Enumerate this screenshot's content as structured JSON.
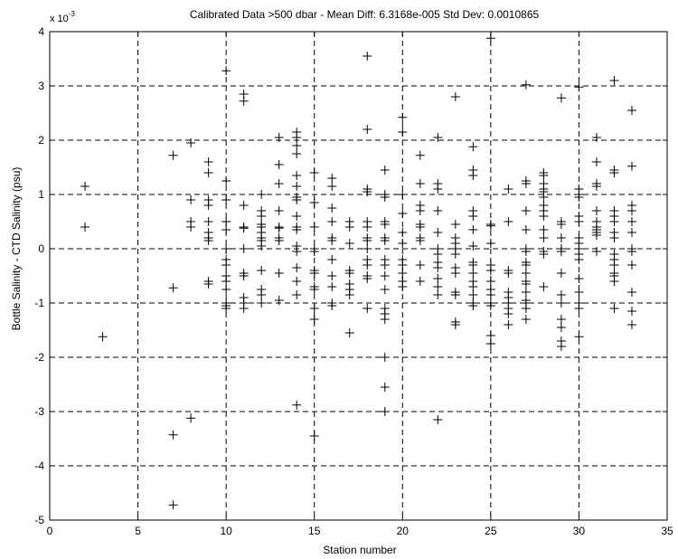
{
  "chart_data": {
    "type": "scatter",
    "title": "Calibrated Data >500 dbar - Mean Diff: 6.3168e-005 Std Dev: 0.0010865",
    "xlabel": "Station number",
    "ylabel": "Bottle Salinity - CTD Salinity (psu)",
    "y_multiplier": {
      "base": "x 10",
      "exponent": "-3"
    },
    "xlim": [
      0,
      35
    ],
    "ylim": [
      -5,
      4
    ],
    "x_ticks": [
      "0",
      "5",
      "10",
      "15",
      "20",
      "25",
      "30",
      "35"
    ],
    "y_ticks": [
      "-5",
      "-4",
      "-3",
      "-2",
      "-1",
      "0",
      "1",
      "2",
      "3",
      "4"
    ],
    "grid": true,
    "marker": "+",
    "series": [
      {
        "points": [
          [
            2,
            1.15
          ],
          [
            2,
            0.4
          ],
          [
            3,
            -1.62
          ],
          [
            7,
            1.72
          ],
          [
            7,
            -0.72
          ],
          [
            7,
            -3.43
          ],
          [
            7,
            -4.72
          ],
          [
            8,
            1.95
          ],
          [
            8,
            0.9
          ],
          [
            8,
            0.5
          ],
          [
            8,
            0.4
          ],
          [
            8,
            -3.12
          ],
          [
            9,
            1.6
          ],
          [
            9,
            1.4
          ],
          [
            9,
            0.9
          ],
          [
            9,
            0.8
          ],
          [
            9,
            0.5
          ],
          [
            9,
            0.3
          ],
          [
            9,
            0.2
          ],
          [
            9,
            0.15
          ],
          [
            9,
            -0.6
          ],
          [
            9,
            -0.65
          ],
          [
            10,
            3.28
          ],
          [
            10,
            1.25
          ],
          [
            10,
            0.9
          ],
          [
            10,
            0.5
          ],
          [
            10,
            0.35
          ],
          [
            10,
            0.0
          ],
          [
            10,
            -0.2
          ],
          [
            10,
            -0.3
          ],
          [
            10,
            -0.5
          ],
          [
            10,
            -0.6
          ],
          [
            10,
            -0.75
          ],
          [
            10,
            -1.0
          ],
          [
            10,
            -1.05
          ],
          [
            10,
            -1.1
          ],
          [
            11,
            2.85
          ],
          [
            11,
            2.72
          ],
          [
            11,
            0.8
          ],
          [
            11,
            0.4
          ],
          [
            11,
            0.38
          ],
          [
            11,
            0.0
          ],
          [
            11,
            -0.45
          ],
          [
            11,
            -0.5
          ],
          [
            11,
            -0.9
          ],
          [
            11,
            -1.0
          ],
          [
            11,
            -1.1
          ],
          [
            12,
            1.0
          ],
          [
            12,
            0.7
          ],
          [
            12,
            0.6
          ],
          [
            12,
            0.45
          ],
          [
            12,
            0.4
          ],
          [
            12,
            0.3
          ],
          [
            12,
            0.2
          ],
          [
            12,
            0.15
          ],
          [
            12,
            0.05
          ],
          [
            12,
            -0.4
          ],
          [
            12,
            -0.75
          ],
          [
            12,
            -0.85
          ],
          [
            12,
            -1.0
          ],
          [
            13,
            2.05
          ],
          [
            13,
            1.55
          ],
          [
            13,
            1.2
          ],
          [
            13,
            0.7
          ],
          [
            13,
            0.4
          ],
          [
            13,
            0.38
          ],
          [
            13,
            0.2
          ],
          [
            13,
            0.15
          ],
          [
            13,
            -0.45
          ],
          [
            13,
            -0.95
          ],
          [
            14,
            2.15
          ],
          [
            14,
            2.05
          ],
          [
            14,
            1.9
          ],
          [
            14,
            1.75
          ],
          [
            14,
            1.35
          ],
          [
            14,
            1.15
          ],
          [
            14,
            0.95
          ],
          [
            14,
            0.9
          ],
          [
            14,
            0.6
          ],
          [
            14,
            0.4
          ],
          [
            14,
            0.35
          ],
          [
            14,
            0.05
          ],
          [
            14,
            -0.05
          ],
          [
            14,
            -0.35
          ],
          [
            14,
            -0.6
          ],
          [
            14,
            -0.85
          ],
          [
            14,
            -2.88
          ],
          [
            15,
            1.4
          ],
          [
            15,
            0.85
          ],
          [
            15,
            0.4
          ],
          [
            15,
            0.0
          ],
          [
            15,
            -0.05
          ],
          [
            15,
            -0.4
          ],
          [
            15,
            -0.45
          ],
          [
            15,
            -0.7
          ],
          [
            15,
            -0.75
          ],
          [
            15,
            -1.1
          ],
          [
            15,
            -1.3
          ],
          [
            15,
            -3.45
          ],
          [
            16,
            1.3
          ],
          [
            16,
            1.15
          ],
          [
            16,
            0.75
          ],
          [
            16,
            0.5
          ],
          [
            16,
            0.2
          ],
          [
            16,
            0.15
          ],
          [
            16,
            -0.2
          ],
          [
            16,
            -0.5
          ],
          [
            16,
            -0.7
          ],
          [
            16,
            -1.0
          ],
          [
            16,
            -1.05
          ],
          [
            17,
            0.5
          ],
          [
            17,
            0.4
          ],
          [
            17,
            0.1
          ],
          [
            17,
            -0.4
          ],
          [
            17,
            -0.45
          ],
          [
            17,
            -0.65
          ],
          [
            17,
            -0.75
          ],
          [
            17,
            -0.85
          ],
          [
            17,
            -1.55
          ],
          [
            18,
            3.55
          ],
          [
            18,
            2.2
          ],
          [
            18,
            1.1
          ],
          [
            18,
            1.05
          ],
          [
            18,
            0.5
          ],
          [
            18,
            0.4
          ],
          [
            18,
            0.2
          ],
          [
            18,
            0.15
          ],
          [
            18,
            0.0
          ],
          [
            18,
            -0.2
          ],
          [
            18,
            -0.3
          ],
          [
            18,
            -0.5
          ],
          [
            18,
            -0.55
          ],
          [
            18,
            -1.1
          ],
          [
            19,
            1.45
          ],
          [
            19,
            1.0
          ],
          [
            19,
            0.95
          ],
          [
            19,
            0.5
          ],
          [
            19,
            0.45
          ],
          [
            19,
            0.2
          ],
          [
            19,
            0.15
          ],
          [
            19,
            -0.2
          ],
          [
            19,
            -0.3
          ],
          [
            19,
            -0.5
          ],
          [
            19,
            -0.75
          ],
          [
            19,
            -1.1
          ],
          [
            19,
            -1.2
          ],
          [
            19,
            -1.3
          ],
          [
            19,
            -2.0
          ],
          [
            19,
            -2.55
          ],
          [
            19,
            -3.0
          ],
          [
            20,
            2.42
          ],
          [
            20,
            2.15
          ],
          [
            20,
            1.0
          ],
          [
            20,
            0.65
          ],
          [
            20,
            0.3
          ],
          [
            20,
            0.1
          ],
          [
            20,
            -0.2
          ],
          [
            20,
            -0.3
          ],
          [
            20,
            -0.45
          ],
          [
            20,
            -0.6
          ],
          [
            20,
            -0.7
          ],
          [
            21,
            1.72
          ],
          [
            21,
            1.2
          ],
          [
            21,
            0.8
          ],
          [
            21,
            0.7
          ],
          [
            21,
            0.45
          ],
          [
            21,
            0.4
          ],
          [
            21,
            0.2
          ],
          [
            21,
            0.15
          ],
          [
            21,
            -0.3
          ],
          [
            21,
            -0.6
          ],
          [
            22,
            2.05
          ],
          [
            22,
            1.2
          ],
          [
            22,
            1.1
          ],
          [
            22,
            0.7
          ],
          [
            22,
            0.3
          ],
          [
            22,
            0.0
          ],
          [
            22,
            -0.1
          ],
          [
            22,
            -0.25
          ],
          [
            22,
            -0.35
          ],
          [
            22,
            -0.55
          ],
          [
            22,
            -0.7
          ],
          [
            22,
            -0.85
          ],
          [
            22,
            -3.15
          ],
          [
            23,
            2.8
          ],
          [
            23,
            0.45
          ],
          [
            23,
            0.2
          ],
          [
            23,
            0.1
          ],
          [
            23,
            0.0
          ],
          [
            23,
            -0.1
          ],
          [
            23,
            -0.35
          ],
          [
            23,
            -0.45
          ],
          [
            23,
            -0.8
          ],
          [
            23,
            -0.85
          ],
          [
            23,
            -1.35
          ],
          [
            23,
            -1.4
          ],
          [
            24,
            1.88
          ],
          [
            24,
            1.45
          ],
          [
            24,
            1.35
          ],
          [
            24,
            0.7
          ],
          [
            24,
            0.6
          ],
          [
            24,
            0.35
          ],
          [
            24,
            0.05
          ],
          [
            24,
            -0.25
          ],
          [
            24,
            -0.3
          ],
          [
            24,
            -0.45
          ],
          [
            24,
            -0.6
          ],
          [
            24,
            -0.7
          ],
          [
            24,
            -0.85
          ],
          [
            24,
            -1.0
          ],
          [
            24,
            -1.05
          ],
          [
            25,
            3.88
          ],
          [
            25,
            0.45
          ],
          [
            25,
            0.42
          ],
          [
            25,
            0.1
          ],
          [
            25,
            -0.3
          ],
          [
            25,
            -0.4
          ],
          [
            25,
            -0.6
          ],
          [
            25,
            -0.75
          ],
          [
            25,
            -0.85
          ],
          [
            25,
            -1.0
          ],
          [
            25,
            -1.05
          ],
          [
            25,
            -1.6
          ],
          [
            25,
            -1.75
          ],
          [
            26,
            1.1
          ],
          [
            26,
            0.5
          ],
          [
            26,
            -0.4
          ],
          [
            26,
            -0.45
          ],
          [
            26,
            -0.8
          ],
          [
            26,
            -0.9
          ],
          [
            26,
            -1.0
          ],
          [
            26,
            -1.1
          ],
          [
            26,
            -1.2
          ],
          [
            26,
            -1.4
          ],
          [
            27,
            3.02
          ],
          [
            27,
            1.25
          ],
          [
            27,
            1.2
          ],
          [
            27,
            0.7
          ],
          [
            27,
            0.35
          ],
          [
            27,
            0.0
          ],
          [
            27,
            -0.05
          ],
          [
            27,
            -0.25
          ],
          [
            27,
            -0.3
          ],
          [
            27,
            -0.45
          ],
          [
            27,
            -0.6
          ],
          [
            27,
            -0.65
          ],
          [
            27,
            -0.8
          ],
          [
            27,
            -0.95
          ],
          [
            27,
            -1.0
          ],
          [
            27,
            -1.1
          ],
          [
            27,
            -1.3
          ],
          [
            28,
            1.4
          ],
          [
            28,
            1.35
          ],
          [
            28,
            1.2
          ],
          [
            28,
            1.1
          ],
          [
            28,
            1.05
          ],
          [
            28,
            0.95
          ],
          [
            28,
            0.8
          ],
          [
            28,
            0.7
          ],
          [
            28,
            0.6
          ],
          [
            28,
            0.35
          ],
          [
            28,
            0.2
          ],
          [
            28,
            -0.05
          ],
          [
            28,
            -0.1
          ],
          [
            28,
            -0.7
          ],
          [
            29,
            2.78
          ],
          [
            29,
            0.5
          ],
          [
            29,
            0.45
          ],
          [
            29,
            0.2
          ],
          [
            29,
            0.0
          ],
          [
            29,
            -0.05
          ],
          [
            29,
            -0.45
          ],
          [
            29,
            -0.85
          ],
          [
            29,
            -1.0
          ],
          [
            29,
            -1.3
          ],
          [
            29,
            -1.45
          ],
          [
            29,
            -1.7
          ],
          [
            29,
            -1.8
          ],
          [
            30,
            2.98
          ],
          [
            30,
            1.1
          ],
          [
            30,
            1.0
          ],
          [
            30,
            0.95
          ],
          [
            30,
            0.6
          ],
          [
            30,
            0.5
          ],
          [
            30,
            0.2
          ],
          [
            30,
            0.1
          ],
          [
            30,
            0.0
          ],
          [
            30,
            -0.1
          ],
          [
            30,
            -0.2
          ],
          [
            30,
            -0.55
          ],
          [
            30,
            -0.8
          ],
          [
            30,
            -1.0
          ],
          [
            30,
            -1.1
          ],
          [
            30,
            -1.62
          ],
          [
            31,
            2.05
          ],
          [
            31,
            1.6
          ],
          [
            31,
            1.2
          ],
          [
            31,
            1.15
          ],
          [
            31,
            0.7
          ],
          [
            31,
            0.5
          ],
          [
            31,
            0.4
          ],
          [
            31,
            0.35
          ],
          [
            31,
            0.3
          ],
          [
            31,
            0.25
          ],
          [
            31,
            -0.05
          ],
          [
            32,
            3.1
          ],
          [
            32,
            1.45
          ],
          [
            32,
            1.4
          ],
          [
            32,
            0.7
          ],
          [
            32,
            0.6
          ],
          [
            32,
            0.5
          ],
          [
            32,
            0.3
          ],
          [
            32,
            0.2
          ],
          [
            32,
            -0.1
          ],
          [
            32,
            -0.2
          ],
          [
            32,
            -0.3
          ],
          [
            32,
            -0.45
          ],
          [
            32,
            -0.5
          ],
          [
            32,
            -0.6
          ],
          [
            32,
            -1.1
          ],
          [
            33,
            2.55
          ],
          [
            33,
            1.52
          ],
          [
            33,
            0.8
          ],
          [
            33,
            0.7
          ],
          [
            33,
            0.5
          ],
          [
            33,
            0.3
          ],
          [
            33,
            0.0
          ],
          [
            33,
            -0.05
          ],
          [
            33,
            -0.3
          ],
          [
            33,
            -0.8
          ],
          [
            33,
            -1.15
          ],
          [
            33,
            -1.4
          ]
        ]
      }
    ]
  }
}
